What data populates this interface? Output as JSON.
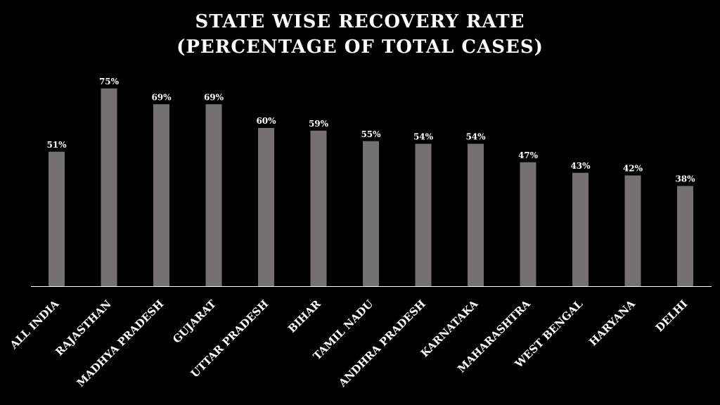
{
  "chart_data": {
    "type": "bar",
    "title_line1": "STATE WISE RECOVERY RATE",
    "title_line2": "(PERCENTAGE OF TOTAL CASES)",
    "categories": [
      "ALL INDIA",
      "RAJASTHAN",
      "MADHYA PRADESH",
      "GUJARAT",
      "UTTAR PRADESH",
      "BIHAR",
      "TAMIL NADU",
      "ANDHRA PRADESH",
      "KARNATAKA",
      "MAHARASHTRA",
      "WEST BENGAL",
      "HARYANA",
      "DELHI"
    ],
    "values": [
      51,
      75,
      69,
      69,
      60,
      59,
      55,
      54,
      54,
      47,
      43,
      42,
      38
    ],
    "value_labels": [
      "51%",
      "75%",
      "69%",
      "69%",
      "60%",
      "59%",
      "55%",
      "54%",
      "54%",
      "47%",
      "43%",
      "42%",
      "38%"
    ],
    "ylim": [
      0,
      80
    ],
    "grid": false,
    "legend": "none",
    "bar_color": "#767171",
    "axis_color": "#ffffff",
    "background": "#000000",
    "text_color": "#ffffff"
  }
}
